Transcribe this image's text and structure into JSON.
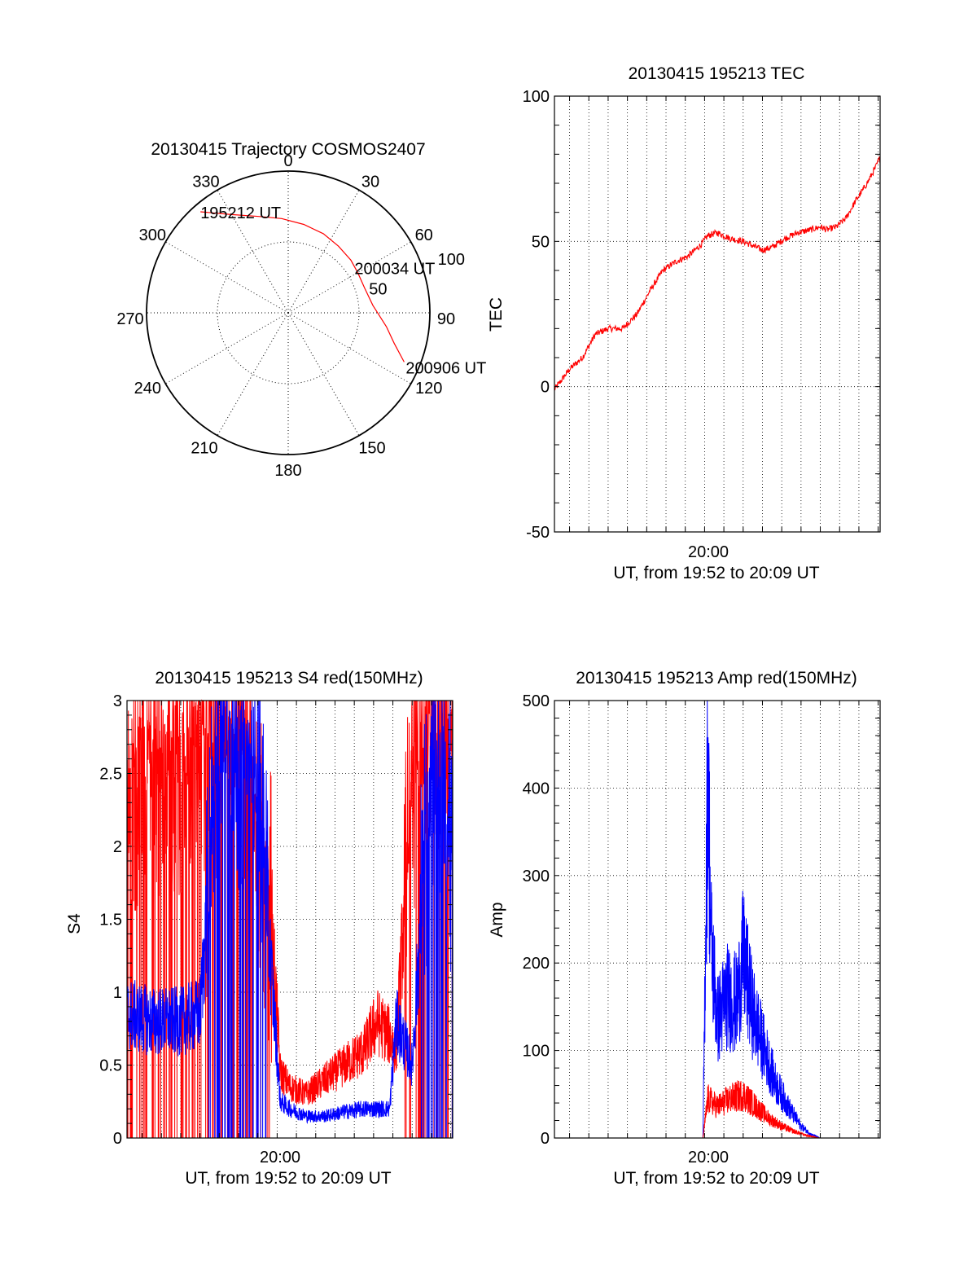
{
  "colors": {
    "red": "#ff0000",
    "blue": "#0000ff",
    "axes": "#000000",
    "background": "#ffffff"
  },
  "chart_data": [
    {
      "type": "polar",
      "title": "20130415 Trajectory COSMOS2407",
      "angle_labels": [
        "0",
        "30",
        "60",
        "90",
        "120",
        "150",
        "180",
        "210",
        "240",
        "270",
        "300",
        "330"
      ],
      "radial_labels": [
        "50",
        "100"
      ],
      "grid": true,
      "trajectory": {
        "color": "red",
        "points": [
          {
            "azimuth": 319,
            "elevation": 5
          },
          {
            "azimuth": 330,
            "elevation": 18
          },
          {
            "azimuth": 343,
            "elevation": 26
          },
          {
            "azimuth": 356,
            "elevation": 30
          },
          {
            "azimuth": 10,
            "elevation": 33
          },
          {
            "azimuth": 24,
            "elevation": 35
          },
          {
            "azimuth": 37,
            "elevation": 37
          },
          {
            "azimuth": 50,
            "elevation": 38
          },
          {
            "azimuth": 60,
            "elevation": 39
          },
          {
            "azimuth": 72,
            "elevation": 39
          },
          {
            "azimuth": 85,
            "elevation": 36
          },
          {
            "azimuth": 98,
            "elevation": 27
          },
          {
            "azimuth": 106,
            "elevation": 20
          },
          {
            "azimuth": 113,
            "elevation": 10
          }
        ]
      },
      "annotations": [
        {
          "text": "195212 UT",
          "azimuth": 319,
          "elevation": 5
        },
        {
          "text": "200034 UT",
          "azimuth": 60,
          "elevation": 39
        },
        {
          "text": "200906 UT",
          "azimuth": 113,
          "elevation": 10
        }
      ]
    },
    {
      "type": "line",
      "title": "20130415 195213 TEC",
      "xlabel": "UT, from 19:52 to 20:09 UT",
      "ylabel": "TEC",
      "x_range": [
        "19:52:13",
        "20:09:06"
      ],
      "x_tick_labels": [
        "20:00"
      ],
      "ylim": [
        -50,
        100
      ],
      "y_tick_labels": [
        "-50",
        "0",
        "50",
        "100"
      ],
      "grid": true,
      "series": [
        {
          "color": "red",
          "x": [
            "19:52:13",
            "19:53:00",
            "19:53:40",
            "19:54:20",
            "19:55:00",
            "19:55:45",
            "19:56:30",
            "19:57:10",
            "19:57:50",
            "19:58:30",
            "19:59:10",
            "19:59:50",
            "20:00:10",
            "20:00:40",
            "20:01:20",
            "20:02:00",
            "20:02:40",
            "20:03:00",
            "20:03:30",
            "20:04:10",
            "20:04:50",
            "20:05:30",
            "20:06:00",
            "20:06:20",
            "20:06:50",
            "20:07:20",
            "20:07:50",
            "20:08:20",
            "20:08:50",
            "20:09:06"
          ],
          "values": [
            -1,
            6,
            10,
            18,
            20,
            20,
            25,
            33,
            40,
            43,
            45,
            49,
            52,
            53,
            51,
            50,
            48,
            47,
            48,
            51,
            53,
            54,
            55,
            54,
            55,
            58,
            64,
            69,
            75,
            79
          ]
        }
      ]
    },
    {
      "type": "line",
      "title": "20130415 195213 S4 red(150MHz)",
      "xlabel": "UT, from 19:52 to 20:09 UT",
      "ylabel": "S4",
      "x_range": [
        "19:52:13",
        "20:09:06"
      ],
      "x_tick_labels": [
        "20:00"
      ],
      "ylim": [
        0,
        3
      ],
      "y_tick_labels": [
        "0",
        "0.5",
        "1",
        "1.5",
        "2",
        "2.5",
        "3"
      ],
      "grid": true,
      "series": [
        {
          "color": "red",
          "x": [
            "19:52:13",
            "19:53:30",
            "19:55:00",
            "19:56:00",
            "19:57:00",
            "19:58:00",
            "19:59:00",
            "19:59:40",
            "20:00:10",
            "20:00:40",
            "20:01:30",
            "20:02:30",
            "20:03:30",
            "20:04:30",
            "20:05:10",
            "20:05:50",
            "20:06:10",
            "20:07:00",
            "20:08:00",
            "20:09:06"
          ],
          "values": [
            2.5,
            2.6,
            2.6,
            2.8,
            2.9,
            2.8,
            2.0,
            1.6,
            0.45,
            0.35,
            0.3,
            0.4,
            0.5,
            0.6,
            0.8,
            0.7,
            0.6,
            2.5,
            2.8,
            3.0
          ]
        },
        {
          "color": "blue",
          "x": [
            "19:52:13",
            "19:53:30",
            "19:55:00",
            "19:56:00",
            "19:57:00",
            "19:58:00",
            "19:59:00",
            "19:59:40",
            "20:00:10",
            "20:00:40",
            "20:01:30",
            "20:02:30",
            "20:03:30",
            "20:04:30",
            "20:05:10",
            "20:05:50",
            "20:06:10",
            "20:07:00",
            "20:08:00",
            "20:09:06"
          ],
          "values": [
            0.85,
            0.8,
            0.8,
            0.85,
            2.8,
            2.7,
            2.5,
            1.2,
            0.25,
            0.2,
            0.15,
            0.15,
            0.18,
            0.2,
            0.2,
            0.2,
            0.8,
            0.5,
            2.7,
            2.0
          ]
        }
      ]
    },
    {
      "type": "line",
      "title": "20130415 195213 Amp red(150MHz)",
      "xlabel": "UT, from 19:52 to 20:09 UT",
      "ylabel": "Amp",
      "x_range": [
        "19:52:13",
        "20:09:06"
      ],
      "x_tick_labels": [
        "20:00"
      ],
      "ylim": [
        0,
        500
      ],
      "y_tick_labels": [
        "0",
        "100",
        "200",
        "300",
        "400",
        "500"
      ],
      "grid": true,
      "series": [
        {
          "color": "blue",
          "x": [
            "19:52:13",
            "19:59:55",
            "20:00:10",
            "20:00:20",
            "20:00:40",
            "20:01:10",
            "20:01:40",
            "20:02:00",
            "20:02:30",
            "20:03:00",
            "20:03:40",
            "20:04:20",
            "20:05:00",
            "20:05:30",
            "20:06:00",
            "20:09:06"
          ],
          "values": [
            0,
            0,
            480,
            250,
            150,
            180,
            170,
            230,
            160,
            120,
            70,
            40,
            15,
            5,
            0,
            0
          ]
        },
        {
          "color": "red",
          "x": [
            "19:52:13",
            "19:59:55",
            "20:00:10",
            "20:00:40",
            "20:01:20",
            "20:02:00",
            "20:02:40",
            "20:03:20",
            "20:04:00",
            "20:04:40",
            "20:05:20",
            "20:06:00",
            "20:09:06"
          ],
          "values": [
            0,
            0,
            50,
            40,
            50,
            55,
            40,
            25,
            15,
            8,
            3,
            0,
            0
          ]
        }
      ]
    }
  ]
}
